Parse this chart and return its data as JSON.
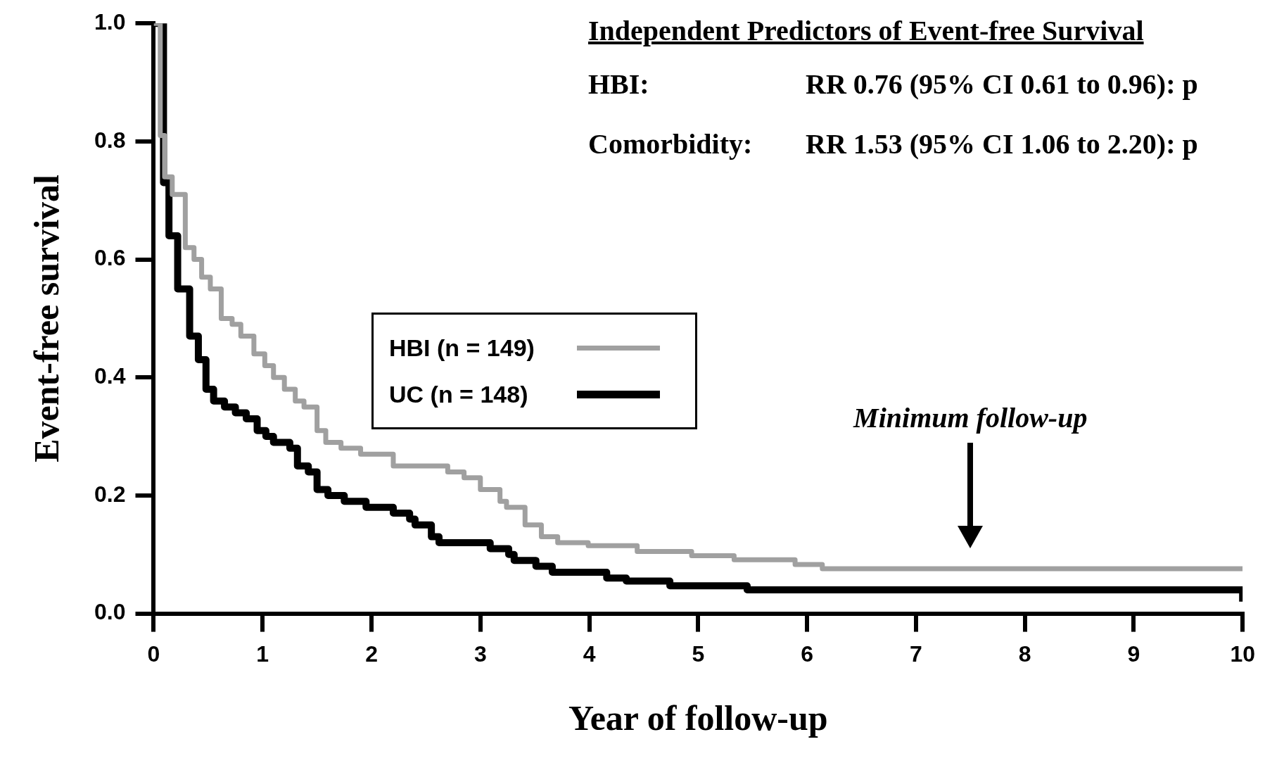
{
  "chart_data": {
    "type": "step",
    "xlabel": "Year of follow-up",
    "ylabel": "Event-free survival",
    "xlim": [
      0,
      10
    ],
    "xticks": [
      0,
      1,
      2,
      3,
      4,
      5,
      6,
      7,
      8,
      9,
      10
    ],
    "ylim": [
      0,
      1
    ],
    "yticks": [
      {
        "value": 0,
        "label": "0.0"
      },
      {
        "value": 0.2,
        "label": "0.2"
      },
      {
        "value": 0.4,
        "label": "0.4"
      },
      {
        "value": 0.6,
        "label": "0.6"
      },
      {
        "value": 0.8,
        "label": "0.8"
      },
      {
        "value": 1,
        "label": "1.0"
      }
    ],
    "legend": "center left",
    "marker": "none",
    "line_style": "solid",
    "series": [
      {
        "name": "HBI (n = 149)",
        "color": "#a0a0a0",
        "x": [
          0,
          0.06,
          0.1,
          0.17,
          0.29,
          0.37,
          0.44,
          0.52,
          0.62,
          0.72,
          0.8,
          0.92,
          1.02,
          1.1,
          1.2,
          1.3,
          1.38,
          1.5,
          1.58,
          1.72,
          1.9,
          2.2,
          2.7,
          2.85,
          3.0,
          3.18,
          3.24,
          3.41,
          3.56,
          3.71,
          3.99,
          4.44,
          4.94,
          5.33,
          5.89,
          6.14,
          10
        ],
        "values": [
          1,
          0.81,
          0.74,
          0.71,
          0.62,
          0.6,
          0.57,
          0.55,
          0.5,
          0.49,
          0.47,
          0.44,
          0.42,
          0.4,
          0.38,
          0.36,
          0.35,
          0.31,
          0.29,
          0.28,
          0.27,
          0.25,
          0.24,
          0.23,
          0.21,
          0.19,
          0.18,
          0.15,
          0.13,
          0.12,
          0.115,
          0.105,
          0.098,
          0.091,
          0.083,
          0.076,
          0.076
        ]
      },
      {
        "name": "UC (n = 148)",
        "color": "#000000",
        "x": [
          0,
          0.09,
          0.14,
          0.22,
          0.33,
          0.41,
          0.48,
          0.55,
          0.65,
          0.75,
          0.85,
          0.95,
          1.03,
          1.1,
          1.25,
          1.32,
          1.42,
          1.5,
          1.6,
          1.75,
          1.95,
          2.2,
          2.35,
          2.4,
          2.55,
          2.62,
          3.09,
          3.26,
          3.31,
          3.51,
          3.66,
          4.16,
          4.34,
          4.74,
          5.45,
          10,
          10
        ],
        "values": [
          1,
          0.73,
          0.64,
          0.55,
          0.47,
          0.43,
          0.38,
          0.36,
          0.35,
          0.34,
          0.33,
          0.31,
          0.3,
          0.29,
          0.28,
          0.25,
          0.24,
          0.21,
          0.2,
          0.19,
          0.18,
          0.17,
          0.16,
          0.15,
          0.13,
          0.12,
          0.11,
          0.1,
          0.09,
          0.08,
          0.07,
          0.06,
          0.055,
          0.047,
          0.04,
          0.04,
          0.02
        ]
      }
    ],
    "annotations": [
      "Independent Predictors of Event-free Survival",
      "HBI:",
      "RR 0.76 (95% CI 0.61 to 0.96): p",
      "Comorbidity:",
      "RR 1.53 (95% CI 1.06 to 2.20): p",
      "Minimum follow-up"
    ]
  }
}
